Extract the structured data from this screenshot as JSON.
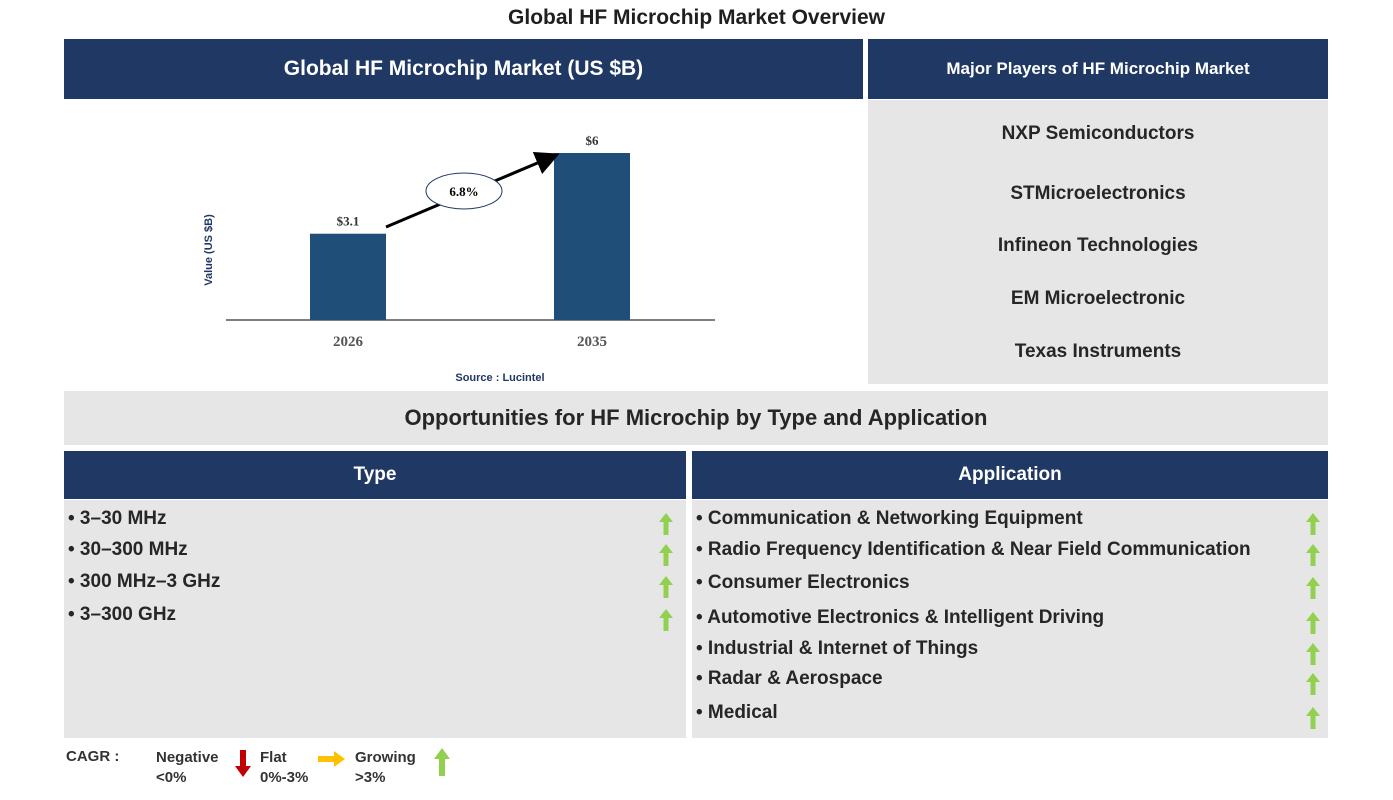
{
  "title": "Global HF Microchip Market Overview",
  "market_header": "Global HF Microchip Market (US $B)",
  "players_header": "Major Players of HF Microchip Market",
  "players": [
    "NXP Semiconductors",
    "STMicroelectronics",
    "Infineon Technologies",
    "EM Microelectronic",
    "Texas Instruments"
  ],
  "opportunities_title": "Opportunities for HF Microchip by Type and Application",
  "type": {
    "header": "Type",
    "items": [
      "• 3–30 MHz",
      "• 30–300 MHz",
      "• 300 MHz–3 GHz",
      "• 3–300 GHz"
    ],
    "trend": "growing"
  },
  "application": {
    "header": "Application",
    "items": [
      "• Communication & Networking Equipment",
      "• Radio Frequency Identification & Near Field Communication",
      "• Consumer Electronics",
      "• Automotive Electronics & Intelligent Driving",
      "• Industrial & Internet of Things",
      "• Radar & Aerospace",
      "• Medical"
    ],
    "trend": "growing"
  },
  "legend": {
    "label": "CAGR :",
    "negative": "Negative",
    "negative_range": "<0%",
    "flat": "Flat",
    "flat_range": "0%-3%",
    "growing": "Growing",
    "growing_range": ">3%"
  },
  "colors": {
    "navy": "#203864",
    "bar": "#1f4e79",
    "panel": "#e7e6e6",
    "growing": "#92d050",
    "flat": "#ffc000",
    "negative": "#c00000"
  },
  "chart_data": {
    "type": "bar",
    "categories": [
      "2026",
      "2035"
    ],
    "values": [
      3.1,
      6
    ],
    "data_labels": [
      "$3.1",
      "$6"
    ],
    "ylabel": "Value (US $B)",
    "annotation": "6.8%",
    "source": "Source : Lucintel",
    "grid": false
  }
}
